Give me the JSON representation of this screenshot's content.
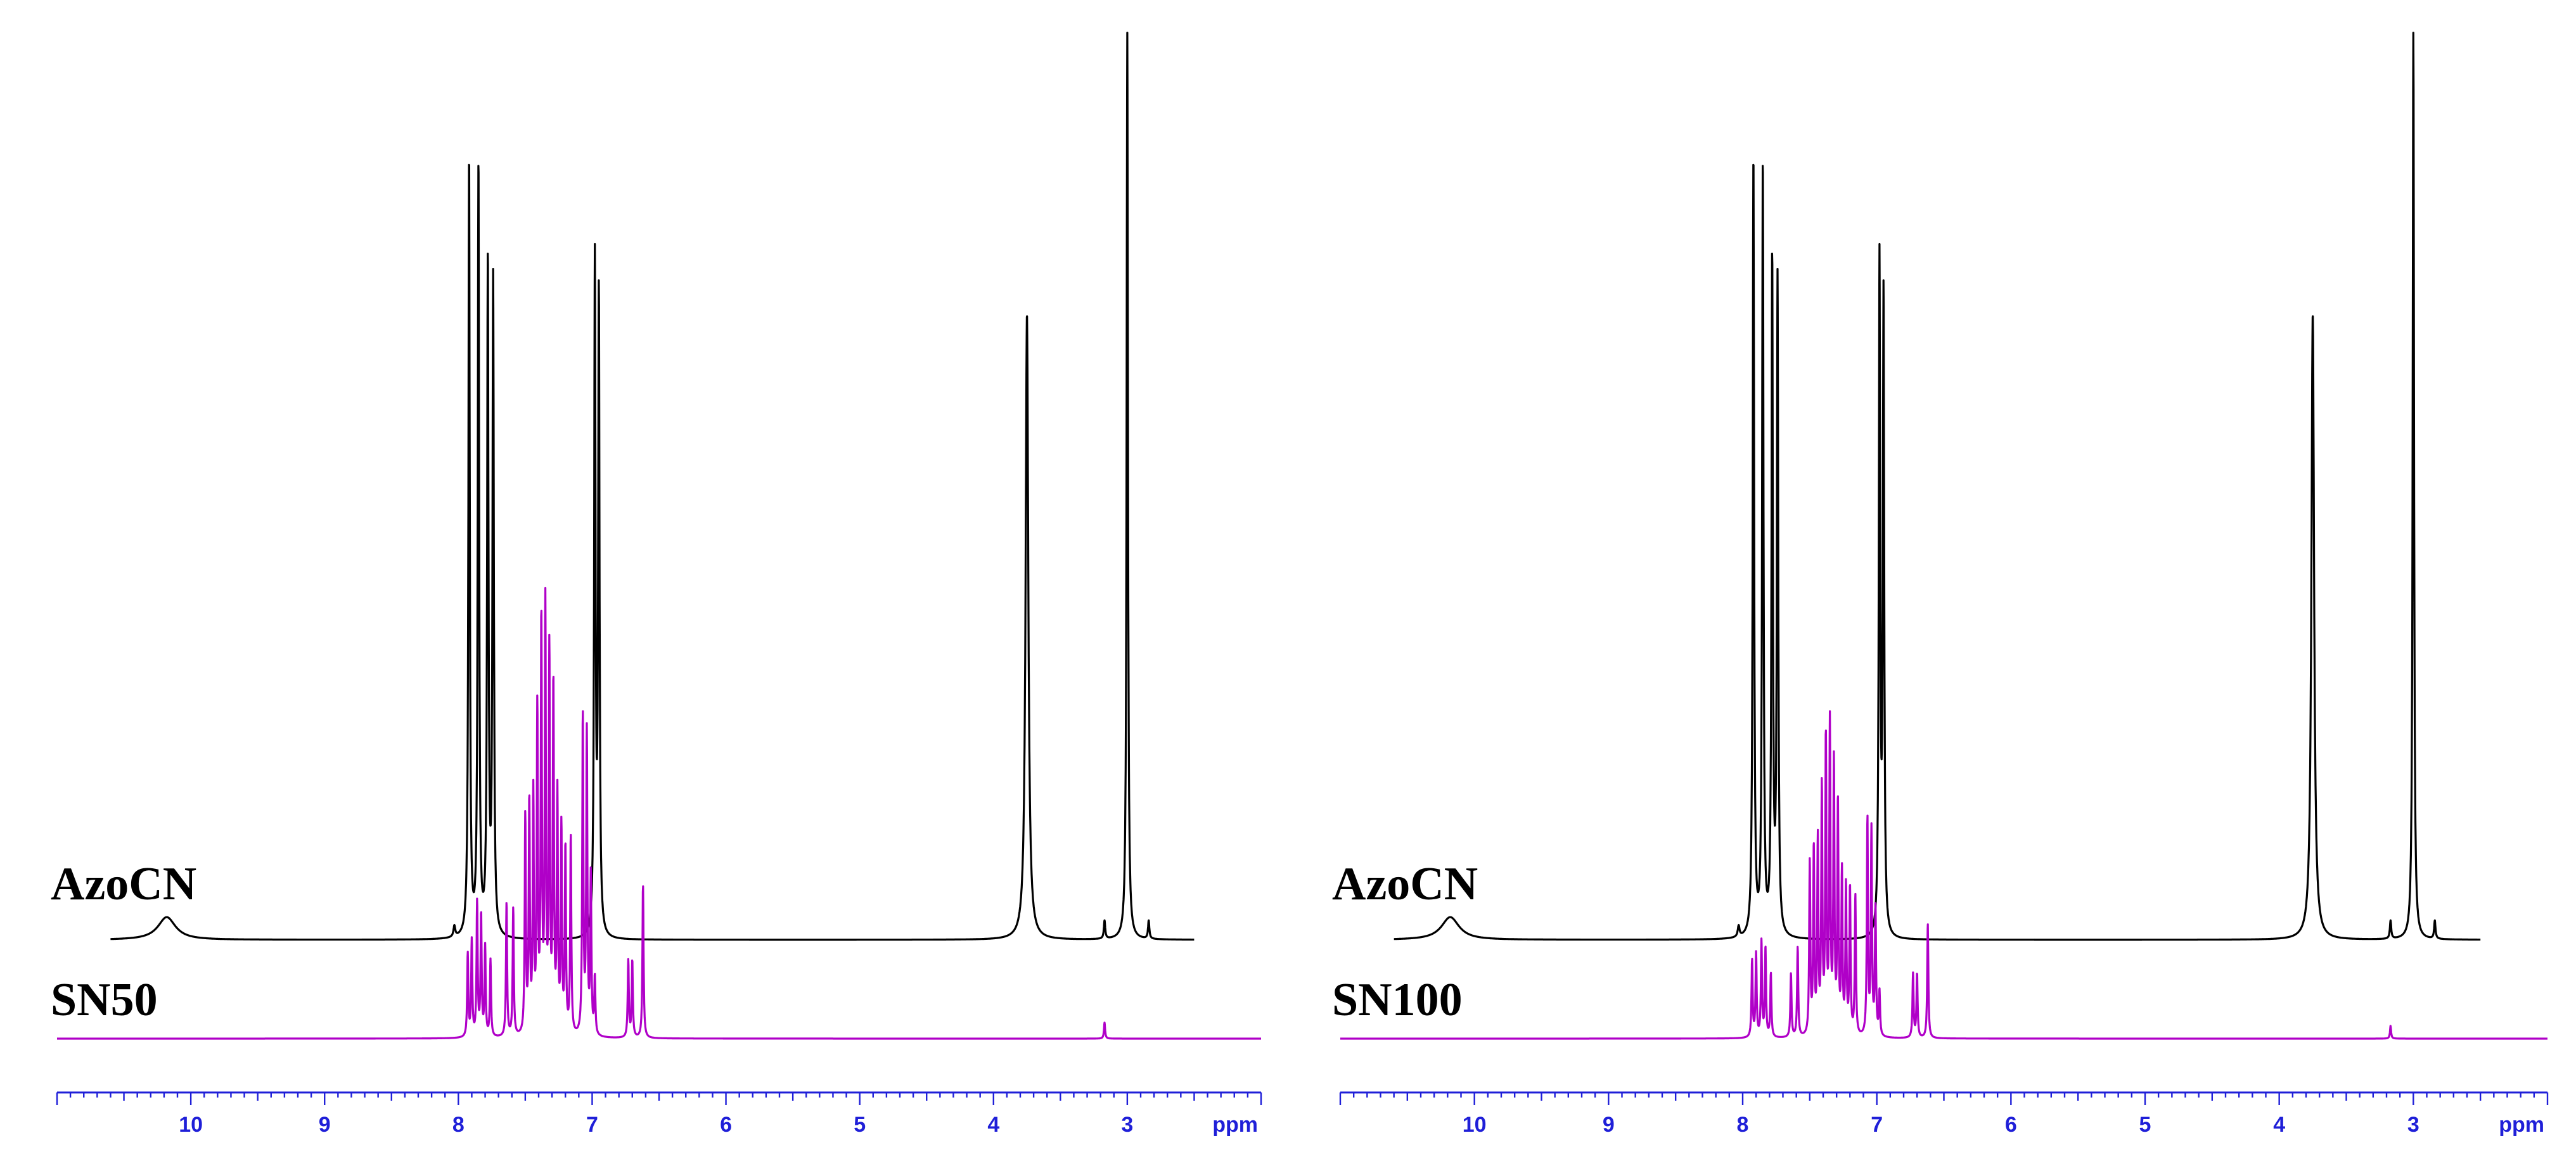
{
  "figure": {
    "panels": [
      {
        "top_label": "AzoCN",
        "bottom_label": "SN50"
      },
      {
        "top_label": "AzoCN",
        "bottom_label": "SN100"
      }
    ],
    "axis_unit": "ppm"
  },
  "colors": {
    "azocn_trace": "#000000",
    "sample_trace": "#b000c8",
    "axis": "#1f1fd8"
  },
  "chart_data": [
    {
      "type": "line",
      "xlabel": "ppm",
      "x_reversed": true,
      "xlim": [
        11.0,
        2.0
      ],
      "x_ticks": [
        10,
        9,
        8,
        7,
        6,
        5,
        4,
        3
      ],
      "grid": false,
      "series": [
        {
          "name": "AzoCN",
          "x_range": [
            10.6,
            2.5
          ],
          "peaks": [
            {
              "ppm": 10.18,
              "height": 0.025,
              "width": 0.08
            },
            {
              "ppm": 8.03,
              "height": 0.012,
              "width": 0.008
            },
            {
              "ppm": 7.92,
              "height": 0.86,
              "width": 0.006
            },
            {
              "ppm": 7.85,
              "height": 0.85,
              "width": 0.006
            },
            {
              "ppm": 7.78,
              "height": 0.74,
              "width": 0.006
            },
            {
              "ppm": 7.74,
              "height": 0.72,
              "width": 0.006
            },
            {
              "ppm": 6.98,
              "height": 0.74,
              "width": 0.006
            },
            {
              "ppm": 6.95,
              "height": 0.7,
              "width": 0.006
            },
            {
              "ppm": 3.75,
              "height": 0.69,
              "width": 0.012
            },
            {
              "ppm": 3.17,
              "height": 0.02,
              "width": 0.006
            },
            {
              "ppm": 3.0,
              "height": 1.0,
              "width": 0.006
            },
            {
              "ppm": 2.84,
              "height": 0.02,
              "width": 0.006
            }
          ]
        },
        {
          "name": "SN50",
          "x_range": [
            11.0,
            2.0
          ],
          "peaks": [
            {
              "ppm": 7.93,
              "height": 0.13,
              "width": 0.005
            },
            {
              "ppm": 7.9,
              "height": 0.15,
              "width": 0.005
            },
            {
              "ppm": 7.86,
              "height": 0.21,
              "width": 0.005
            },
            {
              "ppm": 7.83,
              "height": 0.19,
              "width": 0.005
            },
            {
              "ppm": 7.8,
              "height": 0.14,
              "width": 0.005
            },
            {
              "ppm": 7.76,
              "height": 0.12,
              "width": 0.005
            },
            {
              "ppm": 7.64,
              "height": 0.21,
              "width": 0.005
            },
            {
              "ppm": 7.59,
              "height": 0.2,
              "width": 0.005
            },
            {
              "ppm": 7.5,
              "height": 0.34,
              "width": 0.005
            },
            {
              "ppm": 7.47,
              "height": 0.36,
              "width": 0.005
            },
            {
              "ppm": 7.44,
              "height": 0.37,
              "width": 0.005
            },
            {
              "ppm": 7.41,
              "height": 0.5,
              "width": 0.005
            },
            {
              "ppm": 7.38,
              "height": 0.64,
              "width": 0.005
            },
            {
              "ppm": 7.35,
              "height": 0.66,
              "width": 0.005
            },
            {
              "ppm": 7.32,
              "height": 0.59,
              "width": 0.005
            },
            {
              "ppm": 7.29,
              "height": 0.54,
              "width": 0.005
            },
            {
              "ppm": 7.26,
              "height": 0.37,
              "width": 0.005
            },
            {
              "ppm": 7.23,
              "height": 0.32,
              "width": 0.005
            },
            {
              "ppm": 7.2,
              "height": 0.29,
              "width": 0.005
            },
            {
              "ppm": 7.16,
              "height": 0.31,
              "width": 0.005
            },
            {
              "ppm": 7.07,
              "height": 0.5,
              "width": 0.005
            },
            {
              "ppm": 7.04,
              "height": 0.47,
              "width": 0.005
            },
            {
              "ppm": 7.01,
              "height": 0.25,
              "width": 0.005
            },
            {
              "ppm": 6.98,
              "height": 0.09,
              "width": 0.005
            },
            {
              "ppm": 6.73,
              "height": 0.12,
              "width": 0.005
            },
            {
              "ppm": 6.7,
              "height": 0.12,
              "width": 0.005
            },
            {
              "ppm": 6.62,
              "height": 0.24,
              "width": 0.005
            },
            {
              "ppm": 3.17,
              "height": 0.025,
              "width": 0.005
            }
          ]
        }
      ]
    },
    {
      "type": "line",
      "xlabel": "ppm",
      "x_reversed": true,
      "xlim": [
        11.0,
        2.0
      ],
      "x_ticks": [
        10,
        9,
        8,
        7,
        6,
        5,
        4,
        3
      ],
      "grid": false,
      "series": [
        {
          "name": "AzoCN",
          "x_range": [
            10.6,
            2.5
          ],
          "peaks": [
            {
              "ppm": 10.18,
              "height": 0.025,
              "width": 0.08
            },
            {
              "ppm": 8.03,
              "height": 0.012,
              "width": 0.008
            },
            {
              "ppm": 7.92,
              "height": 0.86,
              "width": 0.006
            },
            {
              "ppm": 7.85,
              "height": 0.85,
              "width": 0.006
            },
            {
              "ppm": 7.78,
              "height": 0.74,
              "width": 0.006
            },
            {
              "ppm": 7.74,
              "height": 0.72,
              "width": 0.006
            },
            {
              "ppm": 6.98,
              "height": 0.74,
              "width": 0.006
            },
            {
              "ppm": 6.95,
              "height": 0.7,
              "width": 0.006
            },
            {
              "ppm": 3.75,
              "height": 0.69,
              "width": 0.012
            },
            {
              "ppm": 3.17,
              "height": 0.02,
              "width": 0.006
            },
            {
              "ppm": 3.0,
              "height": 1.0,
              "width": 0.006
            },
            {
              "ppm": 2.84,
              "height": 0.02,
              "width": 0.006
            }
          ]
        },
        {
          "name": "SN100",
          "x_range": [
            11.0,
            2.0
          ],
          "peaks": [
            {
              "ppm": 7.93,
              "height": 0.12,
              "width": 0.005
            },
            {
              "ppm": 7.9,
              "height": 0.13,
              "width": 0.005
            },
            {
              "ppm": 7.86,
              "height": 0.15,
              "width": 0.005
            },
            {
              "ppm": 7.83,
              "height": 0.14,
              "width": 0.005
            },
            {
              "ppm": 7.79,
              "height": 0.1,
              "width": 0.005
            },
            {
              "ppm": 7.64,
              "height": 0.1,
              "width": 0.005
            },
            {
              "ppm": 7.59,
              "height": 0.14,
              "width": 0.005
            },
            {
              "ppm": 7.5,
              "height": 0.27,
              "width": 0.005
            },
            {
              "ppm": 7.47,
              "height": 0.29,
              "width": 0.005
            },
            {
              "ppm": 7.44,
              "height": 0.3,
              "width": 0.005
            },
            {
              "ppm": 7.41,
              "height": 0.38,
              "width": 0.005
            },
            {
              "ppm": 7.38,
              "height": 0.46,
              "width": 0.005
            },
            {
              "ppm": 7.35,
              "height": 0.48,
              "width": 0.005
            },
            {
              "ppm": 7.32,
              "height": 0.42,
              "width": 0.005
            },
            {
              "ppm": 7.29,
              "height": 0.36,
              "width": 0.005
            },
            {
              "ppm": 7.26,
              "height": 0.25,
              "width": 0.005
            },
            {
              "ppm": 7.23,
              "height": 0.23,
              "width": 0.005
            },
            {
              "ppm": 7.2,
              "height": 0.23,
              "width": 0.005
            },
            {
              "ppm": 7.16,
              "height": 0.22,
              "width": 0.005
            },
            {
              "ppm": 7.07,
              "height": 0.34,
              "width": 0.005
            },
            {
              "ppm": 7.04,
              "height": 0.32,
              "width": 0.005
            },
            {
              "ppm": 7.01,
              "height": 0.2,
              "width": 0.005
            },
            {
              "ppm": 6.98,
              "height": 0.07,
              "width": 0.005
            },
            {
              "ppm": 6.73,
              "height": 0.1,
              "width": 0.005
            },
            {
              "ppm": 6.7,
              "height": 0.1,
              "width": 0.005
            },
            {
              "ppm": 6.62,
              "height": 0.18,
              "width": 0.005
            },
            {
              "ppm": 3.17,
              "height": 0.02,
              "width": 0.005
            }
          ]
        }
      ]
    }
  ]
}
